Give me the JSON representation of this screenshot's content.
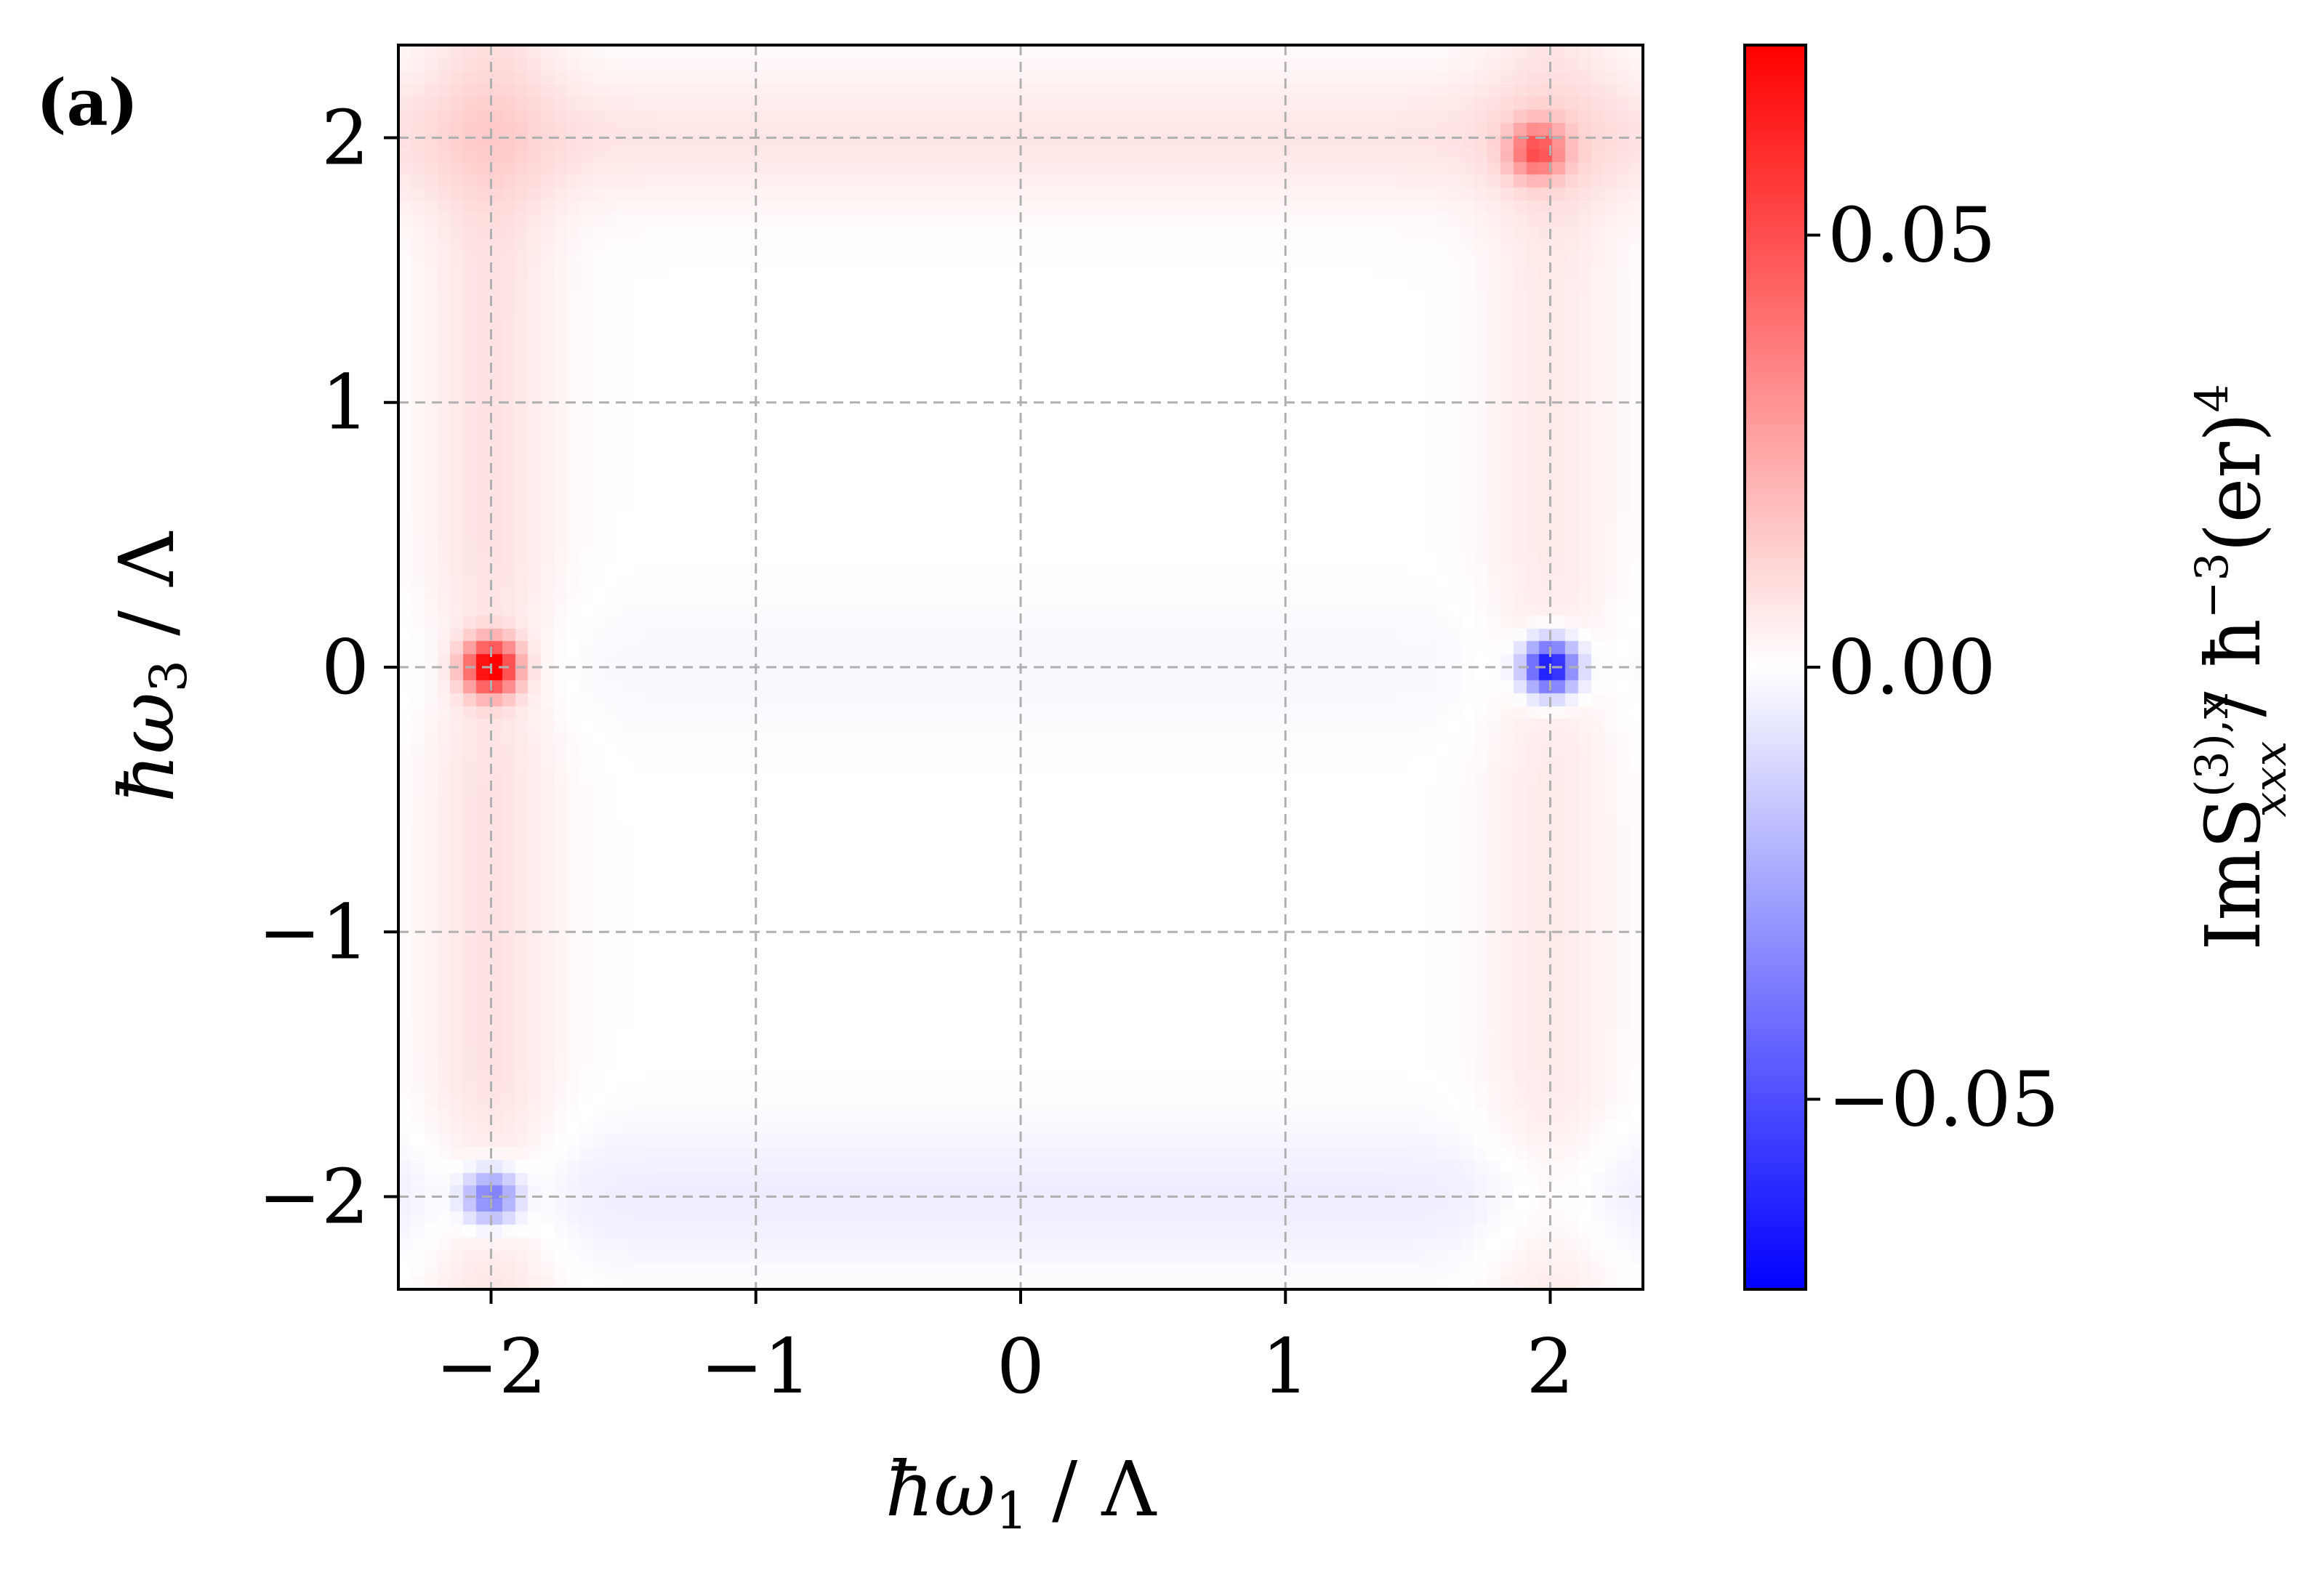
{
  "panel_label": "(a)",
  "colors": {
    "positive": "#ff0000",
    "zero": "#ffffff",
    "negative": "#0000ff",
    "grid": "#b0b0b0",
    "frame": "#000000"
  },
  "chart_data": {
    "type": "heatmap",
    "colormap": "bwr",
    "x_axis": {
      "label_main": "ħω",
      "label_sub": "1",
      "label_unit": " / Λ",
      "lim": [
        -2.35,
        2.35
      ],
      "ticks": [
        -2,
        -1,
        0,
        1,
        2
      ],
      "tick_labels": [
        "−2",
        "−1",
        "0",
        "1",
        "2"
      ]
    },
    "y_axis": {
      "label_main": "ħω",
      "label_sub": "3",
      "label_unit": " / Λ",
      "lim": [
        -2.35,
        2.35
      ],
      "ticks": [
        -2,
        -1,
        0,
        1,
        2
      ],
      "tick_labels": [
        "−2",
        "−1",
        "0",
        "1",
        "2"
      ]
    },
    "grid": true,
    "grid_style": "dashed",
    "colorbar": {
      "label_text": "ImS",
      "label_sup": "(3),x",
      "label_sub": "xxx",
      "label_unit": " / ħ",
      "label_unit_sup": "−3",
      "label_unit_rest": "(er)",
      "label_unit_sup2": "4",
      "range": [
        -0.072,
        0.072
      ],
      "ticks": [
        0.05,
        0.0,
        -0.05
      ],
      "tick_labels": [
        "0.05",
        "0.00",
        "−0.05"
      ]
    },
    "features": [
      {
        "x": -2.0,
        "y": 0.0,
        "value": 0.072,
        "kind": "peak"
      },
      {
        "x": 2.0,
        "y": 0.0,
        "value": -0.072,
        "kind": "peak"
      },
      {
        "x": 1.95,
        "y": 1.95,
        "value": 0.04,
        "kind": "peak"
      },
      {
        "x": -2.0,
        "y": -2.0,
        "value": -0.04,
        "kind": "peak"
      },
      {
        "x": -2.0,
        "y": 0.0,
        "value": 0.008,
        "kind": "band_vertical"
      },
      {
        "x": 2.0,
        "y": 0.0,
        "value": 0.006,
        "kind": "band_vertical"
      },
      {
        "x": 0.0,
        "y": 2.0,
        "value": 0.007,
        "kind": "band_horizontal"
      },
      {
        "x": 0.0,
        "y": -2.0,
        "value": -0.005,
        "kind": "band_horizontal"
      },
      {
        "x": 0.0,
        "y": 0.0,
        "value": -0.002,
        "kind": "band_horizontal"
      }
    ]
  }
}
